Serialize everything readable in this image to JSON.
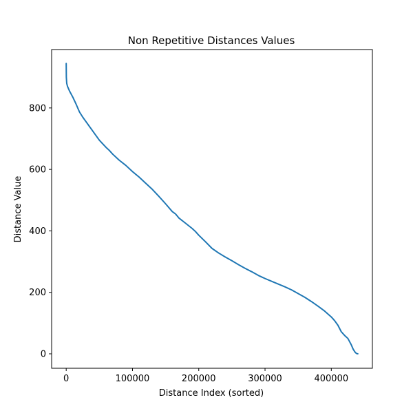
{
  "chart_data": {
    "type": "line",
    "title": "Non Repetitive Distances Values",
    "xlabel": "Distance Index (sorted)",
    "ylabel": "Distance Value",
    "xlim": [
      -22000,
      462000
    ],
    "ylim": [
      -47,
      990
    ],
    "xticks": [
      0,
      100000,
      200000,
      300000,
      400000
    ],
    "yticks": [
      0,
      200,
      400,
      600,
      800
    ],
    "grid": false,
    "series": [
      {
        "color": "#1f77b4",
        "x": [
          0,
          200,
          800,
          2000,
          5000,
          10000,
          15000,
          20000,
          25000,
          30000,
          40000,
          50000,
          60000,
          65000,
          70000,
          80000,
          90000,
          100000,
          110000,
          120000,
          130000,
          140000,
          150000,
          160000,
          165000,
          170000,
          180000,
          190000,
          195000,
          200000,
          210000,
          220000,
          230000,
          240000,
          250000,
          260000,
          270000,
          280000,
          290000,
          300000,
          310000,
          320000,
          330000,
          340000,
          350000,
          360000,
          370000,
          380000,
          390000,
          400000,
          405000,
          410000,
          415000,
          420000,
          425000,
          430000,
          433000,
          436000,
          438000,
          440000
        ],
        "y": [
          945,
          900,
          880,
          870,
          855,
          835,
          812,
          787,
          770,
          755,
          725,
          695,
          672,
          662,
          650,
          630,
          613,
          593,
          575,
          555,
          535,
          512,
          488,
          463,
          455,
          442,
          425,
          408,
          398,
          386,
          365,
          343,
          328,
          315,
          303,
          290,
          278,
          267,
          255,
          245,
          236,
          227,
          218,
          208,
          196,
          184,
          170,
          155,
          139,
          120,
          108,
          93,
          72,
          60,
          50,
          30,
          15,
          5,
          1,
          0
        ]
      }
    ]
  }
}
